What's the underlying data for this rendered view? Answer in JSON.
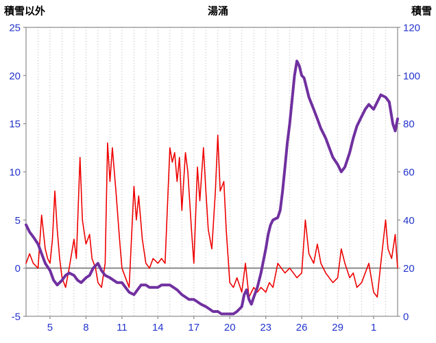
{
  "colors": {
    "tick_label": "#2233cc",
    "axis_line": "#8a8a8a",
    "gridline": "#b5b5b5",
    "zero_line": "#8a8a8a",
    "title_text": "#000000",
    "background": "#ffffff"
  },
  "chart_data": {
    "type": "line",
    "title": "湯涌",
    "left_axis": {
      "label": "積雪以外",
      "min": -5,
      "max": 25,
      "ticks": [
        25,
        20,
        15,
        10,
        5,
        0,
        -5
      ]
    },
    "right_axis": {
      "label": "積雪",
      "min": 0,
      "max": 120,
      "ticks": [
        120,
        100,
        80,
        60,
        40,
        20,
        0
      ]
    },
    "x_axis": {
      "min": 3,
      "max": 34,
      "daily_gridlines": true,
      "ticks": [
        {
          "day": 5,
          "label": "5"
        },
        {
          "day": 8,
          "label": "8"
        },
        {
          "day": 11,
          "label": "11"
        },
        {
          "day": 14,
          "label": "14"
        },
        {
          "day": 17,
          "label": "17"
        },
        {
          "day": 20,
          "label": "20"
        },
        {
          "day": 23,
          "label": "23"
        },
        {
          "day": 26,
          "label": "26"
        },
        {
          "day": 29,
          "label": "29"
        },
        {
          "day": 32,
          "label": "1"
        }
      ]
    },
    "zero_line_left_value": 0,
    "legend": "none",
    "series": [
      {
        "name": "積雪以外",
        "axis": "left",
        "color": "#ee0000",
        "width": 1.6,
        "points": [
          [
            3.0,
            0.5
          ],
          [
            3.3,
            1.5
          ],
          [
            3.6,
            0.5
          ],
          [
            4.0,
            0
          ],
          [
            4.3,
            5.5
          ],
          [
            4.6,
            2
          ],
          [
            4.8,
            1
          ],
          [
            5.0,
            0.5
          ],
          [
            5.2,
            3
          ],
          [
            5.4,
            8
          ],
          [
            5.6,
            4
          ],
          [
            5.8,
            1
          ],
          [
            6.0,
            -1
          ],
          [
            6.3,
            -2
          ],
          [
            6.6,
            0
          ],
          [
            7.0,
            3
          ],
          [
            7.2,
            1
          ],
          [
            7.5,
            11.5
          ],
          [
            7.7,
            5
          ],
          [
            8.0,
            2.5
          ],
          [
            8.3,
            3.5
          ],
          [
            8.5,
            1
          ],
          [
            8.8,
            0
          ],
          [
            9.0,
            -1.5
          ],
          [
            9.3,
            -2
          ],
          [
            9.6,
            0.5
          ],
          [
            9.8,
            13
          ],
          [
            10.0,
            9
          ],
          [
            10.2,
            12.5
          ],
          [
            10.5,
            8
          ],
          [
            10.8,
            3
          ],
          [
            11.0,
            0
          ],
          [
            11.3,
            -1
          ],
          [
            11.6,
            -2
          ],
          [
            12.0,
            8.5
          ],
          [
            12.2,
            5
          ],
          [
            12.4,
            7.5
          ],
          [
            12.7,
            3
          ],
          [
            13.0,
            0.5
          ],
          [
            13.3,
            0
          ],
          [
            13.6,
            1
          ],
          [
            14.0,
            0.5
          ],
          [
            14.3,
            1
          ],
          [
            14.6,
            0.5
          ],
          [
            15.0,
            12.5
          ],
          [
            15.2,
            11
          ],
          [
            15.4,
            12
          ],
          [
            15.6,
            9
          ],
          [
            15.8,
            11.5
          ],
          [
            16.0,
            6
          ],
          [
            16.3,
            12
          ],
          [
            16.5,
            10
          ],
          [
            16.8,
            4
          ],
          [
            17.0,
            0.5
          ],
          [
            17.3,
            10.5
          ],
          [
            17.5,
            7
          ],
          [
            17.8,
            12.5
          ],
          [
            18.0,
            8
          ],
          [
            18.2,
            4
          ],
          [
            18.5,
            2
          ],
          [
            18.8,
            8
          ],
          [
            19.0,
            13.8
          ],
          [
            19.2,
            8
          ],
          [
            19.5,
            9
          ],
          [
            19.7,
            4
          ],
          [
            20.0,
            -1.5
          ],
          [
            20.3,
            -2
          ],
          [
            20.6,
            -1
          ],
          [
            21.0,
            -2.5
          ],
          [
            21.3,
            0.5
          ],
          [
            21.6,
            -3
          ],
          [
            22.0,
            -2
          ],
          [
            22.3,
            -2.5
          ],
          [
            22.6,
            -2
          ],
          [
            23.0,
            -2.5
          ],
          [
            23.3,
            -1.5
          ],
          [
            23.6,
            -2
          ],
          [
            24.0,
            0.5
          ],
          [
            24.3,
            0
          ],
          [
            24.6,
            -0.5
          ],
          [
            25.0,
            0
          ],
          [
            25.3,
            -0.5
          ],
          [
            25.6,
            -1
          ],
          [
            26.0,
            -0.5
          ],
          [
            26.3,
            5
          ],
          [
            26.6,
            1.5
          ],
          [
            27.0,
            0.5
          ],
          [
            27.3,
            2.5
          ],
          [
            27.6,
            0.5
          ],
          [
            28.0,
            -0.5
          ],
          [
            28.3,
            -1
          ],
          [
            28.6,
            -1.5
          ],
          [
            29.0,
            -1
          ],
          [
            29.3,
            2
          ],
          [
            29.6,
            0.5
          ],
          [
            30.0,
            -1
          ],
          [
            30.3,
            -0.5
          ],
          [
            30.6,
            -2
          ],
          [
            31.0,
            -1.5
          ],
          [
            31.3,
            -0.5
          ],
          [
            31.6,
            0.5
          ],
          [
            32.0,
            -2.5
          ],
          [
            32.3,
            -3
          ],
          [
            32.6,
            0.5
          ],
          [
            33.0,
            5
          ],
          [
            33.2,
            2
          ],
          [
            33.5,
            1
          ],
          [
            33.8,
            3.5
          ],
          [
            34.0,
            0
          ]
        ]
      },
      {
        "name": "積雪",
        "axis": "right",
        "color": "#7030a0",
        "width": 4,
        "points": [
          [
            3.0,
            38
          ],
          [
            3.3,
            35
          ],
          [
            3.6,
            33
          ],
          [
            4.0,
            30
          ],
          [
            4.3,
            26
          ],
          [
            4.6,
            22
          ],
          [
            5.0,
            19
          ],
          [
            5.3,
            15
          ],
          [
            5.6,
            13
          ],
          [
            6.0,
            15
          ],
          [
            6.3,
            17
          ],
          [
            6.6,
            18
          ],
          [
            7.0,
            17
          ],
          [
            7.3,
            15
          ],
          [
            7.6,
            14
          ],
          [
            8.0,
            16
          ],
          [
            8.3,
            17
          ],
          [
            8.6,
            20
          ],
          [
            9.0,
            22
          ],
          [
            9.3,
            19
          ],
          [
            9.6,
            17
          ],
          [
            10.0,
            16
          ],
          [
            10.3,
            15
          ],
          [
            10.6,
            14
          ],
          [
            11.0,
            14
          ],
          [
            11.3,
            12
          ],
          [
            11.6,
            10
          ],
          [
            12.0,
            9
          ],
          [
            12.3,
            11
          ],
          [
            12.6,
            13
          ],
          [
            13.0,
            13
          ],
          [
            13.3,
            12
          ],
          [
            13.6,
            12
          ],
          [
            14.0,
            12
          ],
          [
            14.3,
            13
          ],
          [
            14.6,
            13
          ],
          [
            15.0,
            13
          ],
          [
            15.3,
            12
          ],
          [
            15.6,
            11
          ],
          [
            16.0,
            9
          ],
          [
            16.3,
            8
          ],
          [
            16.6,
            7
          ],
          [
            17.0,
            7
          ],
          [
            17.3,
            6
          ],
          [
            17.6,
            5
          ],
          [
            18.0,
            4
          ],
          [
            18.3,
            3
          ],
          [
            18.6,
            2
          ],
          [
            19.0,
            2
          ],
          [
            19.3,
            1
          ],
          [
            19.6,
            1
          ],
          [
            20.0,
            1
          ],
          [
            20.3,
            1
          ],
          [
            20.6,
            2
          ],
          [
            21.0,
            4
          ],
          [
            21.2,
            9
          ],
          [
            21.4,
            11
          ],
          [
            21.6,
            7
          ],
          [
            21.8,
            5
          ],
          [
            22.0,
            8
          ],
          [
            22.3,
            12
          ],
          [
            22.6,
            18
          ],
          [
            23.0,
            28
          ],
          [
            23.2,
            34
          ],
          [
            23.4,
            38
          ],
          [
            23.6,
            40
          ],
          [
            24.0,
            41
          ],
          [
            24.2,
            44
          ],
          [
            24.4,
            52
          ],
          [
            24.6,
            62
          ],
          [
            24.8,
            72
          ],
          [
            25.0,
            80
          ],
          [
            25.2,
            90
          ],
          [
            25.4,
            100
          ],
          [
            25.6,
            106
          ],
          [
            25.8,
            104
          ],
          [
            26.0,
            100
          ],
          [
            26.2,
            99
          ],
          [
            26.4,
            95
          ],
          [
            26.6,
            91
          ],
          [
            27.0,
            86
          ],
          [
            27.3,
            82
          ],
          [
            27.6,
            78
          ],
          [
            28.0,
            74
          ],
          [
            28.3,
            70
          ],
          [
            28.6,
            66
          ],
          [
            29.0,
            63
          ],
          [
            29.3,
            60
          ],
          [
            29.6,
            62
          ],
          [
            30.0,
            68
          ],
          [
            30.3,
            74
          ],
          [
            30.6,
            79
          ],
          [
            31.0,
            83
          ],
          [
            31.3,
            86
          ],
          [
            31.6,
            88
          ],
          [
            32.0,
            86
          ],
          [
            32.3,
            89
          ],
          [
            32.6,
            92
          ],
          [
            33.0,
            91
          ],
          [
            33.3,
            89
          ],
          [
            33.6,
            80
          ],
          [
            33.8,
            77
          ],
          [
            34.0,
            82
          ]
        ]
      }
    ]
  }
}
